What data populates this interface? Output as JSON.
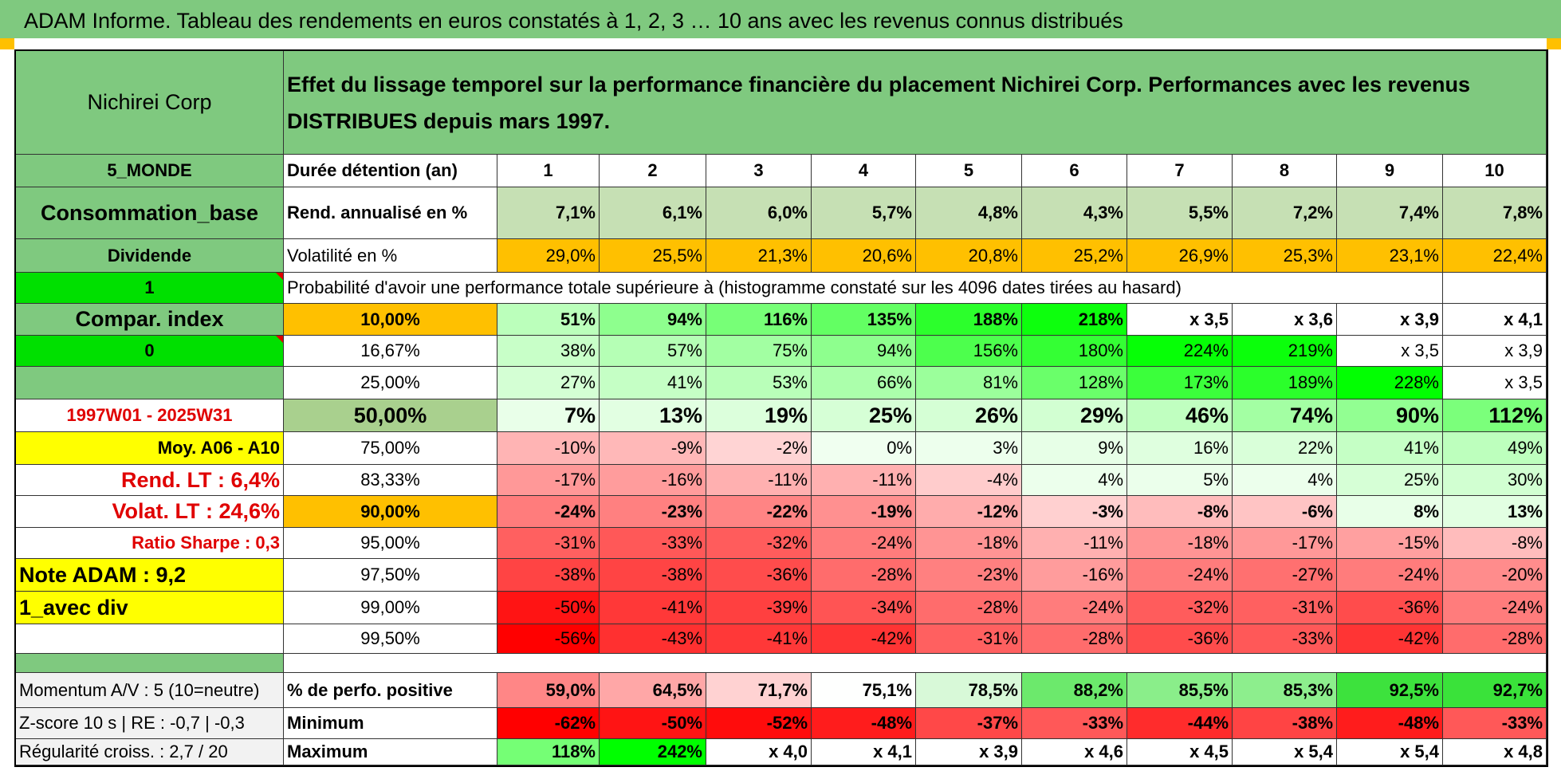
{
  "title": "ADAM Informe. Tableau des rendements en euros constatés à 1, 2, 3 … 10 ans avec les revenus connus distribués",
  "header": {
    "name": "Nichirei Corp",
    "description": "Effet du lissage temporel sur la performance financière du placement Nichirei Corp. Performances avec les revenus DISTRIBUES depuis mars 1997."
  },
  "left_labels": [
    "5_MONDE",
    "Consommation_base",
    "Dividende",
    "1",
    "Compar. index",
    "0",
    "",
    "1997W01 - 2025W31",
    "Moy. A06 - A10",
    "Rend. LT :    6,4%",
    "Volat. LT :    24,6%",
    "Ratio Sharpe :    0,3",
    "Note ADAM : 9,2",
    "1_avec div",
    ""
  ],
  "duration_label": "Durée détention (an)",
  "years": [
    "1",
    "2",
    "3",
    "4",
    "5",
    "6",
    "7",
    "8",
    "9",
    "10"
  ],
  "rend_label": "Rend. annualisé en %",
  "rend": [
    "7,1%",
    "6,1%",
    "6,0%",
    "5,7%",
    "4,8%",
    "4,3%",
    "5,5%",
    "7,2%",
    "7,4%",
    "7,8%"
  ],
  "vol_label": "Volatilité en %",
  "vol": [
    "29,0%",
    "25,5%",
    "21,3%",
    "20,6%",
    "20,8%",
    "25,2%",
    "26,9%",
    "25,3%",
    "23,1%",
    "22,4%"
  ],
  "prob_title": "Probabilité d'avoir une performance totale supérieure à (histogramme constaté sur les 4096 dates tirées au hasard)",
  "prob_rows": [
    {
      "p": "10,00%",
      "v": [
        "51%",
        "94%",
        "116%",
        "135%",
        "188%",
        "218%",
        "x 3,5",
        "x 3,6",
        "x 3,9",
        "x 4,1"
      ]
    },
    {
      "p": "16,67%",
      "v": [
        "38%",
        "57%",
        "75%",
        "94%",
        "156%",
        "180%",
        "224%",
        "219%",
        "x 3,5",
        "x 3,9"
      ]
    },
    {
      "p": "25,00%",
      "v": [
        "27%",
        "41%",
        "53%",
        "66%",
        "81%",
        "128%",
        "173%",
        "189%",
        "228%",
        "x 3,5"
      ]
    },
    {
      "p": "50,00%",
      "v": [
        "7%",
        "13%",
        "19%",
        "25%",
        "26%",
        "29%",
        "46%",
        "74%",
        "90%",
        "112%"
      ]
    },
    {
      "p": "75,00%",
      "v": [
        "-10%",
        "-9%",
        "-2%",
        "0%",
        "3%",
        "9%",
        "16%",
        "22%",
        "41%",
        "49%"
      ]
    },
    {
      "p": "83,33%",
      "v": [
        "-17%",
        "-16%",
        "-11%",
        "-11%",
        "-4%",
        "4%",
        "5%",
        "4%",
        "25%",
        "30%"
      ]
    },
    {
      "p": "90,00%",
      "v": [
        "-24%",
        "-23%",
        "-22%",
        "-19%",
        "-12%",
        "-3%",
        "-8%",
        "-6%",
        "8%",
        "13%"
      ]
    },
    {
      "p": "95,00%",
      "v": [
        "-31%",
        "-33%",
        "-32%",
        "-24%",
        "-18%",
        "-11%",
        "-18%",
        "-17%",
        "-15%",
        "-8%"
      ]
    },
    {
      "p": "97,50%",
      "v": [
        "-38%",
        "-38%",
        "-36%",
        "-28%",
        "-23%",
        "-16%",
        "-24%",
        "-27%",
        "-24%",
        "-20%"
      ]
    },
    {
      "p": "99,00%",
      "v": [
        "-50%",
        "-41%",
        "-39%",
        "-34%",
        "-28%",
        "-24%",
        "-32%",
        "-31%",
        "-36%",
        "-24%"
      ]
    },
    {
      "p": "99,50%",
      "v": [
        "-56%",
        "-43%",
        "-41%",
        "-42%",
        "-31%",
        "-28%",
        "-36%",
        "-33%",
        "-42%",
        "-28%"
      ]
    }
  ],
  "footer_rows": [
    {
      "left": "Momentum A/V : 5 (10=neutre)",
      "label": "% de perfo. positive",
      "v": [
        "59,0%",
        "64,5%",
        "71,7%",
        "75,1%",
        "78,5%",
        "88,2%",
        "85,5%",
        "85,3%",
        "92,5%",
        "92,7%"
      ]
    },
    {
      "left": "Z-score 10 s | RE : -0,7 | -0,3",
      "label": "Minimum",
      "v": [
        "-62%",
        "-50%",
        "-52%",
        "-48%",
        "-37%",
        "-33%",
        "-44%",
        "-38%",
        "-48%",
        "-33%"
      ]
    },
    {
      "left": "Régularité croiss. : 2,7 / 20",
      "label": "Maximum",
      "v": [
        "118%",
        "242%",
        "x 4,0",
        "x 4,1",
        "x 3,9",
        "x 4,6",
        "x 4,5",
        "x 5,4",
        "x 5,4",
        "x 4,8"
      ]
    }
  ],
  "colors": {
    "title_bg": "#7fc97f",
    "header_green": "#7fc97f",
    "light_green": "#c6e0b4",
    "orange": "#ffc000",
    "bright_green": "#00e000",
    "yellow": "#ffff00",
    "max_green": "#00ff00",
    "max_red": "#ff0000"
  }
}
